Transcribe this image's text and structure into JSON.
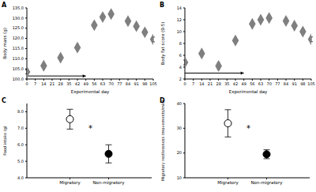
{
  "chart_data": [
    {
      "type": "scatter",
      "title": "A",
      "x_label": "Experimental day",
      "y_label": "Body mass (g)",
      "x": [
        0,
        14,
        28,
        42,
        56,
        63,
        70,
        84,
        91,
        98,
        105
      ],
      "values": [
        103.5,
        106.5,
        110.5,
        115.5,
        126.5,
        130.5,
        132,
        128.5,
        126,
        123,
        119.5
      ],
      "errors": [
        1,
        1,
        1,
        1.2,
        1.2,
        1.2,
        1.2,
        1.2,
        1.2,
        1.2,
        1.2
      ],
      "color": "#7f7f7f",
      "marker": "diamond",
      "arrow": {
        "x": [
          0,
          49
        ],
        "y": 101.5
      },
      "xlim": [
        0,
        105
      ],
      "xticks": [
        0,
        7,
        14,
        21,
        28,
        35,
        42,
        49,
        56,
        63,
        70,
        77,
        84,
        91,
        98,
        105
      ],
      "ylim": [
        100,
        135
      ],
      "yticks": [
        {
          "value": 100,
          "label": "100.0"
        },
        {
          "value": 105,
          "label": "105.0"
        },
        {
          "value": 110,
          "label": "110.0"
        },
        {
          "value": 115,
          "label": "115.0"
        },
        {
          "value": 120,
          "label": "120.0"
        },
        {
          "value": 125,
          "label": "125.0"
        },
        {
          "value": 130,
          "label": "130.0"
        },
        {
          "value": 135,
          "label": "135.0"
        }
      ]
    },
    {
      "type": "scatter",
      "title": "B",
      "x_label": "Experimental day",
      "y_label": "Body fat score (0-5)",
      "x": [
        0,
        14,
        28,
        42,
        56,
        63,
        70,
        84,
        91,
        98,
        105
      ],
      "values": [
        4.8,
        6.3,
        4.2,
        8.5,
        11.3,
        12,
        12.3,
        11.8,
        11,
        10,
        8.7
      ],
      "errors": [
        0.4,
        0.4,
        0.5,
        0.5,
        0.4,
        0.4,
        0.4,
        0.4,
        0.4,
        0.4,
        0.4
      ],
      "color": "#7f7f7f",
      "marker": "diamond",
      "arrow": {
        "x": [
          0,
          49
        ],
        "y": 3
      },
      "xlim": [
        0,
        105
      ],
      "xticks": [
        0,
        7,
        14,
        21,
        28,
        35,
        42,
        49,
        56,
        63,
        70,
        77,
        84,
        91,
        98,
        105
      ],
      "ylim": [
        2,
        14
      ],
      "yticks": [
        2,
        4,
        6,
        8,
        10,
        12,
        14
      ]
    },
    {
      "type": "scatter",
      "title": "C",
      "y_label": "Food intake (g)",
      "categories": [
        "Migratory",
        "Non-migratory"
      ],
      "values": [
        7.55,
        5.45
      ],
      "errors": [
        0.6,
        0.55
      ],
      "colors": [
        "#ffffff",
        "#000000"
      ],
      "marker": "circle",
      "annotations": [
        "*"
      ],
      "ylim": [
        4,
        8.5
      ],
      "yticks": [
        {
          "value": 4,
          "label": "4.0"
        },
        {
          "value": 5,
          "label": "5.0"
        },
        {
          "value": 6,
          "label": "6.0"
        },
        {
          "value": 7,
          "label": "7.0"
        },
        {
          "value": 8,
          "label": "8.0"
        }
      ]
    },
    {
      "type": "scatter",
      "title": "D",
      "y_label": "Migratory restlessness (movements/min)",
      "categories": [
        "Migratory",
        "Non-migratory"
      ],
      "values": [
        32,
        19.5
      ],
      "errors": [
        5.5,
        1.8
      ],
      "colors": [
        "#ffffff",
        "#000000"
      ],
      "marker": "circle",
      "annotations": [
        "*"
      ],
      "ylim": [
        10,
        40
      ],
      "yticks": [
        10,
        20,
        30,
        40
      ]
    }
  ]
}
